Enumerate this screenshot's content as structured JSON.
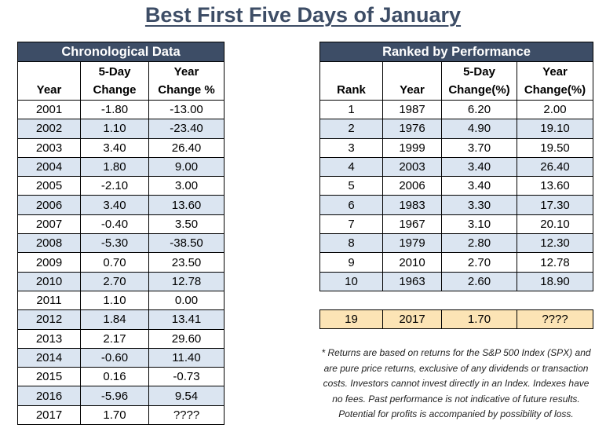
{
  "title": "Best First Five Days of January",
  "chronological": {
    "banner": "Chronological Data",
    "headers": [
      "Year",
      "5-Day\nChange",
      "Year\nChange %"
    ],
    "rows": [
      [
        "2001",
        "-1.80",
        "-13.00"
      ],
      [
        "2002",
        "1.10",
        "-23.40"
      ],
      [
        "2003",
        "3.40",
        "26.40"
      ],
      [
        "2004",
        "1.80",
        "9.00"
      ],
      [
        "2005",
        "-2.10",
        "3.00"
      ],
      [
        "2006",
        "3.40",
        "13.60"
      ],
      [
        "2007",
        "-0.40",
        "3.50"
      ],
      [
        "2008",
        "-5.30",
        "-38.50"
      ],
      [
        "2009",
        "0.70",
        "23.50"
      ],
      [
        "2010",
        "2.70",
        "12.78"
      ],
      [
        "2011",
        "1.10",
        "0.00"
      ],
      [
        "2012",
        "1.84",
        "13.41"
      ],
      [
        "2013",
        "2.17",
        "29.60"
      ],
      [
        "2014",
        "-0.60",
        "11.40"
      ],
      [
        "2015",
        "0.16",
        "-0.73"
      ],
      [
        "2016",
        "-5.96",
        "9.54"
      ],
      [
        "2017",
        "1.70",
        "????"
      ]
    ]
  },
  "ranked": {
    "banner": "Ranked by Performance",
    "headers": [
      "Rank",
      "Year",
      "5-Day\nChange(%)",
      "Year\nChange(%)"
    ],
    "rows": [
      [
        "1",
        "1987",
        "6.20",
        "2.00"
      ],
      [
        "2",
        "1976",
        "4.90",
        "19.10"
      ],
      [
        "3",
        "1999",
        "3.70",
        "19.50"
      ],
      [
        "4",
        "2003",
        "3.40",
        "26.40"
      ],
      [
        "5",
        "2006",
        "3.40",
        "13.60"
      ],
      [
        "6",
        "1983",
        "3.30",
        "17.30"
      ],
      [
        "7",
        "1967",
        "3.10",
        "20.10"
      ],
      [
        "8",
        "1979",
        "2.80",
        "12.30"
      ],
      [
        "9",
        "2010",
        "2.70",
        "12.78"
      ],
      [
        "10",
        "1963",
        "2.60",
        "18.90"
      ]
    ]
  },
  "highlight": {
    "row": [
      "19",
      "2017",
      "1.70",
      "????"
    ],
    "color": "#fce4b5"
  },
  "colors": {
    "banner": "#3d4d66",
    "stripe": "#dbe5f1",
    "title": "#3d4d66"
  },
  "note": "* Returns are based on returns for the S&P 500 Index (SPX) and are pure price returns, exclusive of any dividends or transaction costs. Investors cannot invest directly in an Index. Indexes have no fees. Past performance is not indicative of future results. Potential for profits is accompanied by possibility of loss."
}
